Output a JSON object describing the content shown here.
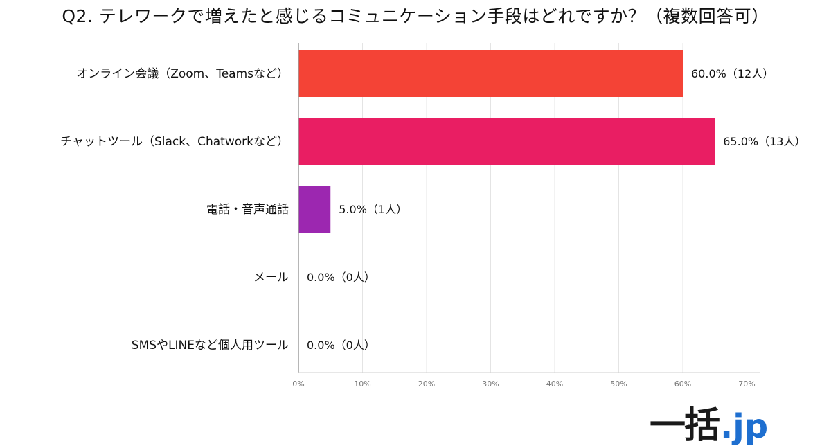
{
  "title": "Q2. テレワークで増えたと感じるコミュニケーション手段はどれですか？（複数回答可）",
  "chart_data": {
    "type": "bar",
    "orientation": "horizontal",
    "categories": [
      "オンライン会議（Zoom、Teamsなど）",
      "チャットツール（Slack、Chatworkなど）",
      "電話・音声通話",
      "メール",
      "SMSやLINEなど個人用ツール"
    ],
    "values": [
      60.0,
      65.0,
      5.0,
      0.0,
      0.0
    ],
    "data_labels": [
      "60.0%（12人）",
      "65.0%（13人）",
      "5.0%（1人）",
      "0.0%（0人）",
      "0.0%（0人）"
    ],
    "colors": [
      "#f44336",
      "#e91e63",
      "#9c27b0",
      "#9c27b0",
      "#9c27b0"
    ],
    "xlim": [
      0,
      72
    ],
    "xticks": [
      0,
      10,
      20,
      30,
      40,
      50,
      60,
      70
    ],
    "xtick_labels": [
      "0%",
      "10%",
      "20%",
      "30%",
      "40%",
      "50%",
      "60%",
      "70%"
    ],
    "grid": "vertical",
    "xlabel": "",
    "ylabel": ""
  },
  "logo": {
    "kanji": "一括",
    "tld": ".jp"
  }
}
